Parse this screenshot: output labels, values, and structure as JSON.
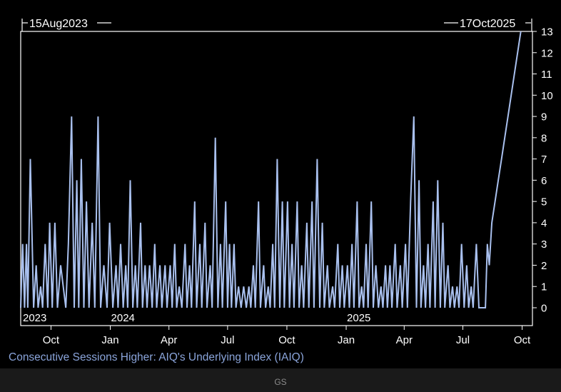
{
  "chart_data": {
    "type": "line",
    "title": "Consecutive Sessions Higher: AIQ's Underlying Index (IAIQ)",
    "start_marker": "15Aug2023",
    "end_marker": "17Oct2025",
    "x_range": [
      "2023-08-15",
      "2025-10-17"
    ],
    "ylim": [
      0,
      13
    ],
    "y_ticks": [
      0,
      1,
      2,
      3,
      4,
      5,
      6,
      7,
      8,
      9,
      10,
      11,
      12,
      13
    ],
    "month_ticks": [
      {
        "date": "2023-10-01",
        "label": "Oct"
      },
      {
        "date": "2024-01-01",
        "label": "Jan"
      },
      {
        "date": "2024-04-01",
        "label": "Apr"
      },
      {
        "date": "2024-07-01",
        "label": "Jul"
      },
      {
        "date": "2024-10-01",
        "label": "Oct"
      },
      {
        "date": "2025-01-01",
        "label": "Jan"
      },
      {
        "date": "2025-04-01",
        "label": "Apr"
      },
      {
        "date": "2025-07-01",
        "label": "Jul"
      },
      {
        "date": "2025-10-01",
        "label": "Oct"
      }
    ],
    "year_labels": [
      {
        "date": "2023-08-15",
        "label": "2023"
      },
      {
        "date": "2024-01-01",
        "label": "2024"
      },
      {
        "date": "2025-01-01",
        "label": "2025"
      }
    ],
    "line_color": "#a9c0ee",
    "grid": false,
    "series": [
      {
        "points": [
          [
            "2023-08-15",
            0
          ],
          [
            "2023-08-18",
            3
          ],
          [
            "2023-08-21",
            0
          ],
          [
            "2023-08-24",
            3
          ],
          [
            "2023-08-26",
            0
          ],
          [
            "2023-08-30",
            7
          ],
          [
            "2023-09-04",
            0
          ],
          [
            "2023-09-08",
            2
          ],
          [
            "2023-09-11",
            0
          ],
          [
            "2023-09-15",
            1
          ],
          [
            "2023-09-18",
            0
          ],
          [
            "2023-09-22",
            3
          ],
          [
            "2023-09-26",
            0
          ],
          [
            "2023-09-29",
            4
          ],
          [
            "2023-10-03",
            0
          ],
          [
            "2023-10-07",
            4
          ],
          [
            "2023-10-11",
            0
          ],
          [
            "2023-10-16",
            2
          ],
          [
            "2023-10-20",
            1
          ],
          [
            "2023-10-24",
            0
          ],
          [
            "2023-10-28",
            3
          ],
          [
            "2023-11-02",
            9
          ],
          [
            "2023-11-06",
            0
          ],
          [
            "2023-11-10",
            6
          ],
          [
            "2023-11-13",
            0
          ],
          [
            "2023-11-17",
            7
          ],
          [
            "2023-11-21",
            0
          ],
          [
            "2023-11-25",
            5
          ],
          [
            "2023-11-29",
            0
          ],
          [
            "2023-12-04",
            4
          ],
          [
            "2023-12-08",
            0
          ],
          [
            "2023-12-13",
            9
          ],
          [
            "2023-12-17",
            0
          ],
          [
            "2023-12-22",
            2
          ],
          [
            "2023-12-27",
            0
          ],
          [
            "2023-12-31",
            4
          ],
          [
            "2024-01-05",
            0
          ],
          [
            "2024-01-10",
            2
          ],
          [
            "2024-01-13",
            0
          ],
          [
            "2024-01-17",
            3
          ],
          [
            "2024-01-21",
            0
          ],
          [
            "2024-01-25",
            2
          ],
          [
            "2024-01-28",
            0
          ],
          [
            "2024-02-01",
            6
          ],
          [
            "2024-02-05",
            0
          ],
          [
            "2024-02-09",
            2
          ],
          [
            "2024-02-12",
            0
          ],
          [
            "2024-02-17",
            4
          ],
          [
            "2024-02-20",
            0
          ],
          [
            "2024-02-24",
            2
          ],
          [
            "2024-02-27",
            0
          ],
          [
            "2024-03-02",
            2
          ],
          [
            "2024-03-06",
            0
          ],
          [
            "2024-03-10",
            3
          ],
          [
            "2024-03-13",
            0
          ],
          [
            "2024-03-18",
            2
          ],
          [
            "2024-03-21",
            0
          ],
          [
            "2024-03-26",
            2
          ],
          [
            "2024-03-29",
            0
          ],
          [
            "2024-04-03",
            2
          ],
          [
            "2024-04-06",
            0
          ],
          [
            "2024-04-10",
            3
          ],
          [
            "2024-04-13",
            0
          ],
          [
            "2024-04-17",
            1
          ],
          [
            "2024-04-21",
            0
          ],
          [
            "2024-04-26",
            3
          ],
          [
            "2024-04-29",
            0
          ],
          [
            "2024-05-03",
            2
          ],
          [
            "2024-05-06",
            0
          ],
          [
            "2024-05-11",
            5
          ],
          [
            "2024-05-14",
            0
          ],
          [
            "2024-05-19",
            3
          ],
          [
            "2024-05-22",
            0
          ],
          [
            "2024-05-27",
            4
          ],
          [
            "2024-05-30",
            0
          ],
          [
            "2024-06-04",
            2
          ],
          [
            "2024-06-07",
            0
          ],
          [
            "2024-06-12",
            8
          ],
          [
            "2024-06-16",
            0
          ],
          [
            "2024-06-20",
            3
          ],
          [
            "2024-06-23",
            0
          ],
          [
            "2024-06-28",
            5
          ],
          [
            "2024-07-01",
            0
          ],
          [
            "2024-07-04",
            3
          ],
          [
            "2024-07-07",
            0
          ],
          [
            "2024-07-11",
            3
          ],
          [
            "2024-07-14",
            0
          ],
          [
            "2024-07-18",
            1
          ],
          [
            "2024-07-22",
            0
          ],
          [
            "2024-07-26",
            1
          ],
          [
            "2024-07-30",
            0
          ],
          [
            "2024-08-03",
            1
          ],
          [
            "2024-08-06",
            0
          ],
          [
            "2024-08-10",
            2
          ],
          [
            "2024-08-13",
            0
          ],
          [
            "2024-08-18",
            5
          ],
          [
            "2024-08-21",
            0
          ],
          [
            "2024-08-26",
            2
          ],
          [
            "2024-08-29",
            0
          ],
          [
            "2024-09-02",
            1
          ],
          [
            "2024-09-05",
            0
          ],
          [
            "2024-09-09",
            3
          ],
          [
            "2024-09-12",
            0
          ],
          [
            "2024-09-16",
            7
          ],
          [
            "2024-09-20",
            0
          ],
          [
            "2024-09-24",
            5
          ],
          [
            "2024-09-27",
            0
          ],
          [
            "2024-10-02",
            5
          ],
          [
            "2024-10-05",
            0
          ],
          [
            "2024-10-09",
            3
          ],
          [
            "2024-10-12",
            0
          ],
          [
            "2024-10-17",
            5
          ],
          [
            "2024-10-20",
            0
          ],
          [
            "2024-10-24",
            2
          ],
          [
            "2024-10-27",
            0
          ],
          [
            "2024-11-01",
            4
          ],
          [
            "2024-11-04",
            0
          ],
          [
            "2024-11-09",
            5
          ],
          [
            "2024-11-12",
            0
          ],
          [
            "2024-11-17",
            7
          ],
          [
            "2024-11-21",
            0
          ],
          [
            "2024-11-25",
            4
          ],
          [
            "2024-11-28",
            0
          ],
          [
            "2024-12-03",
            2
          ],
          [
            "2024-12-06",
            0
          ],
          [
            "2024-12-11",
            1
          ],
          [
            "2024-12-14",
            0
          ],
          [
            "2024-12-19",
            3
          ],
          [
            "2024-12-22",
            0
          ],
          [
            "2024-12-26",
            2
          ],
          [
            "2024-12-29",
            0
          ],
          [
            "2025-01-03",
            2
          ],
          [
            "2025-01-06",
            0
          ],
          [
            "2025-01-10",
            3
          ],
          [
            "2025-01-13",
            0
          ],
          [
            "2025-01-18",
            5
          ],
          [
            "2025-01-21",
            0
          ],
          [
            "2025-01-25",
            1
          ],
          [
            "2025-01-28",
            0
          ],
          [
            "2025-02-01",
            3
          ],
          [
            "2025-02-04",
            0
          ],
          [
            "2025-02-09",
            5
          ],
          [
            "2025-02-12",
            0
          ],
          [
            "2025-02-16",
            2
          ],
          [
            "2025-02-20",
            0
          ],
          [
            "2025-02-24",
            1
          ],
          [
            "2025-02-27",
            0
          ],
          [
            "2025-03-03",
            2
          ],
          [
            "2025-03-06",
            0
          ],
          [
            "2025-03-10",
            2
          ],
          [
            "2025-03-13",
            0
          ],
          [
            "2025-03-18",
            3
          ],
          [
            "2025-03-21",
            0
          ],
          [
            "2025-03-26",
            2
          ],
          [
            "2025-03-29",
            0
          ],
          [
            "2025-04-03",
            3
          ],
          [
            "2025-04-06",
            0
          ],
          [
            "2025-04-11",
            5
          ],
          [
            "2025-04-16",
            9
          ],
          [
            "2025-04-20",
            0
          ],
          [
            "2025-04-24",
            6
          ],
          [
            "2025-04-27",
            0
          ],
          [
            "2025-05-01",
            2
          ],
          [
            "2025-05-04",
            0
          ],
          [
            "2025-05-08",
            3
          ],
          [
            "2025-05-11",
            0
          ],
          [
            "2025-05-16",
            5
          ],
          [
            "2025-05-19",
            0
          ],
          [
            "2025-05-23",
            6
          ],
          [
            "2025-05-27",
            0
          ],
          [
            "2025-05-31",
            4
          ],
          [
            "2025-06-03",
            0
          ],
          [
            "2025-06-08",
            2
          ],
          [
            "2025-06-11",
            0
          ],
          [
            "2025-06-15",
            1
          ],
          [
            "2025-06-18",
            0
          ],
          [
            "2025-06-22",
            1
          ],
          [
            "2025-06-25",
            0
          ],
          [
            "2025-06-29",
            3
          ],
          [
            "2025-07-03",
            0
          ],
          [
            "2025-07-07",
            2
          ],
          [
            "2025-07-10",
            0
          ],
          [
            "2025-07-14",
            1
          ],
          [
            "2025-07-17",
            0
          ],
          [
            "2025-07-22",
            3
          ],
          [
            "2025-07-26",
            0
          ],
          [
            "2025-08-05",
            0
          ],
          [
            "2025-08-08",
            3
          ],
          [
            "2025-08-11",
            2
          ],
          [
            "2025-08-15",
            4
          ],
          [
            "2025-08-20",
            5
          ],
          [
            "2025-08-25",
            6
          ],
          [
            "2025-08-30",
            7
          ],
          [
            "2025-09-04",
            8
          ],
          [
            "2025-09-09",
            9
          ],
          [
            "2025-09-14",
            10
          ],
          [
            "2025-09-19",
            11
          ],
          [
            "2025-09-24",
            12
          ],
          [
            "2025-09-29",
            13
          ]
        ]
      }
    ]
  },
  "footer": {
    "source": "GS"
  }
}
